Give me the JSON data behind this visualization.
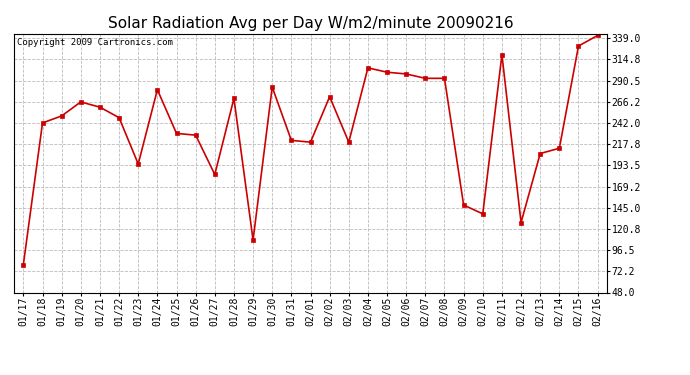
{
  "title": "Solar Radiation Avg per Day W/m2/minute 20090216",
  "copyright": "Copyright 2009 Cartronics.com",
  "x_labels": [
    "01/17",
    "01/18",
    "01/19",
    "01/20",
    "01/21",
    "01/22",
    "01/23",
    "01/24",
    "01/25",
    "01/26",
    "01/27",
    "01/28",
    "01/29",
    "01/30",
    "01/31",
    "02/01",
    "02/02",
    "02/03",
    "02/04",
    "02/05",
    "02/06",
    "02/07",
    "02/08",
    "02/09",
    "02/10",
    "02/11",
    "02/12",
    "02/13",
    "02/14",
    "02/15",
    "02/16"
  ],
  "y_values": [
    80.0,
    242.0,
    250.0,
    266.0,
    260.0,
    248.0,
    195.0,
    280.0,
    230.0,
    228.0,
    183.0,
    270.0,
    108.0,
    283.0,
    222.0,
    220.0,
    272.0,
    220.0,
    305.0,
    300.0,
    298.0,
    293.0,
    293.0,
    148.0,
    138.0,
    320.0,
    128.0,
    207.0,
    213.0,
    330.0,
    342.0
  ],
  "line_color": "#cc0000",
  "marker_color": "#cc0000",
  "bg_color": "#ffffff",
  "plot_bg_color": "#ffffff",
  "grid_color": "#bbbbbb",
  "y_min": 48.0,
  "y_max": 344.0,
  "y_ticks": [
    48.0,
    72.2,
    96.5,
    120.8,
    145.0,
    169.2,
    193.5,
    217.8,
    242.0,
    266.2,
    290.5,
    314.8,
    339.0
  ],
  "title_fontsize": 11,
  "copyright_fontsize": 6.5,
  "tick_fontsize": 7,
  "figwidth": 6.9,
  "figheight": 3.75,
  "dpi": 100
}
